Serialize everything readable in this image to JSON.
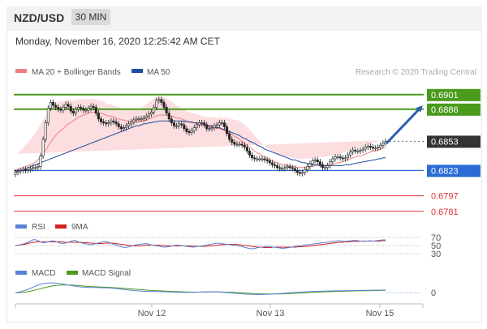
{
  "header": {
    "pair": "NZD/USD",
    "timeframe": "30 MIN"
  },
  "datetime": "Monday, November 16, 2020 12:25:42 AM CET",
  "credit": "Research © 2020 Trading Central",
  "colors": {
    "ma20": "#f08080",
    "ma50": "#1f4e9c",
    "bands": "#fbd3d5",
    "target": "#4a9a1c",
    "support": "#2a6bd6",
    "resistance": "#e23030",
    "arrow": "#2a5fb0",
    "current": "#333333",
    "rsi": "#5b80d8",
    "rsi_ma": "#d42020",
    "macd": "#5b80d8",
    "macd_signal": "#4a9a1c"
  },
  "chart_data": [
    {
      "type": "candlestick",
      "legend": [
        {
          "name": "MA 20 + Bollinger Bands",
          "color": "#f08080"
        },
        {
          "name": "MA 50",
          "color": "#1f4e9c"
        }
      ],
      "xlabel": "",
      "ylabel": "",
      "x_ticks": [
        "Nov 12",
        "Nov 13",
        "Nov 15"
      ],
      "ylim": [
        0.6775,
        0.6915
      ],
      "levels": [
        {
          "value": 0.6901,
          "label": "0.6901",
          "kind": "target"
        },
        {
          "value": 0.6886,
          "label": "0.6886",
          "kind": "target"
        },
        {
          "value": 0.6853,
          "label": "0.6853",
          "kind": "current"
        },
        {
          "value": 0.6823,
          "label": "0.6823",
          "kind": "support"
        },
        {
          "value": 0.6797,
          "label": "0.6797",
          "kind": "resistance"
        },
        {
          "value": 0.6781,
          "label": "0.6781",
          "kind": "resistance"
        }
      ],
      "close": [
        0.6821,
        0.6822,
        0.6823,
        0.6824,
        0.6823,
        0.6824,
        0.6825,
        0.6826,
        0.6826,
        0.6827,
        0.6838,
        0.6855,
        0.6872,
        0.6887,
        0.6893,
        0.689,
        0.6888,
        0.6886,
        0.6885,
        0.6888,
        0.6891,
        0.6889,
        0.6884,
        0.6882,
        0.6886,
        0.6888,
        0.6887,
        0.6885,
        0.6885,
        0.6887,
        0.6889,
        0.6888,
        0.6882,
        0.6876,
        0.6873,
        0.6872,
        0.6871,
        0.6872,
        0.6874,
        0.6873,
        0.6871,
        0.6868,
        0.6866,
        0.6867,
        0.6869,
        0.6871,
        0.6873,
        0.6875,
        0.6876,
        0.6876,
        0.6876,
        0.6877,
        0.6879,
        0.6881,
        0.6883,
        0.6888,
        0.6895,
        0.6896,
        0.6893,
        0.6888,
        0.6882,
        0.6876,
        0.6872,
        0.6869,
        0.6869,
        0.6871,
        0.687,
        0.6866,
        0.6863,
        0.6862,
        0.6864,
        0.6867,
        0.687,
        0.6872,
        0.6872,
        0.687,
        0.6866,
        0.6866,
        0.6867,
        0.6869,
        0.687,
        0.6872,
        0.6872,
        0.6868,
        0.6861,
        0.6855,
        0.6852,
        0.685,
        0.685,
        0.685,
        0.6849,
        0.6847,
        0.6843,
        0.6839,
        0.6836,
        0.6835,
        0.6835,
        0.6835,
        0.6835,
        0.6834,
        0.6833,
        0.6831,
        0.6829,
        0.6828,
        0.6826,
        0.6825,
        0.6825,
        0.6826,
        0.6827,
        0.6826,
        0.6825,
        0.6823,
        0.6821,
        0.682,
        0.6821,
        0.6824,
        0.6827,
        0.683,
        0.6833,
        0.6834,
        0.6832,
        0.6829,
        0.6826,
        0.6826,
        0.6828,
        0.6832,
        0.6835,
        0.6837,
        0.6837,
        0.6836,
        0.6835,
        0.6836,
        0.6839,
        0.6842,
        0.6844,
        0.6843,
        0.6843,
        0.6844,
        0.6845,
        0.6847,
        0.6848,
        0.6847,
        0.6846,
        0.6846,
        0.6847,
        0.6849,
        0.6851,
        0.6853
      ],
      "ma20": [
        0.6824,
        0.6824,
        0.6825,
        0.6826,
        0.6827,
        0.6828,
        0.6829,
        0.683,
        0.6832,
        0.6834,
        0.6837,
        0.6841,
        0.6844,
        0.6848,
        0.6852,
        0.6856,
        0.6859,
        0.6862,
        0.6864,
        0.6866,
        0.6869,
        0.6871,
        0.6872,
        0.6874,
        0.6876,
        0.6878,
        0.6879,
        0.688,
        0.6881,
        0.6882,
        0.6883,
        0.6883,
        0.6883,
        0.6882,
        0.6882,
        0.6881,
        0.688,
        0.6879,
        0.6879,
        0.6878,
        0.6877,
        0.6876,
        0.6875,
        0.6875,
        0.6874,
        0.6874,
        0.6873,
        0.6873,
        0.6873,
        0.6873,
        0.6874,
        0.6874,
        0.6875,
        0.6876,
        0.6877,
        0.6878,
        0.6879,
        0.688,
        0.688,
        0.688,
        0.688,
        0.688,
        0.6879,
        0.6878,
        0.6877,
        0.6877,
        0.6876,
        0.6875,
        0.6874,
        0.6873,
        0.6872,
        0.6872,
        0.6871,
        0.687,
        0.6869,
        0.6869,
        0.6868,
        0.6868,
        0.6867,
        0.6867,
        0.6866,
        0.6866,
        0.6865,
        0.6864,
        0.6863,
        0.6861,
        0.686,
        0.6858,
        0.6857,
        0.6855,
        0.6853,
        0.6851,
        0.6849,
        0.6847,
        0.6845,
        0.6843,
        0.6841,
        0.684,
        0.6838,
        0.6837,
        0.6835,
        0.6834,
        0.6833,
        0.6832,
        0.6831,
        0.683,
        0.6829,
        0.6829,
        0.6828,
        0.6828,
        0.6827,
        0.6827,
        0.6826,
        0.6826,
        0.6826,
        0.6826,
        0.6826,
        0.6827,
        0.6827,
        0.6828,
        0.6828,
        0.6828,
        0.6828,
        0.6828,
        0.6829,
        0.6829,
        0.683,
        0.683,
        0.6831,
        0.6831,
        0.6832,
        0.6833,
        0.6834,
        0.6835,
        0.6836,
        0.6837,
        0.6838,
        0.6838,
        0.6839,
        0.684,
        0.6841,
        0.6842,
        0.6843,
        0.6843,
        0.6844,
        0.6845,
        0.6846,
        0.6847
      ],
      "ma50": [
        0.6822,
        0.6823,
        0.6823,
        0.6824,
        0.6825,
        0.6826,
        0.6827,
        0.6828,
        0.6829,
        0.683,
        0.6831,
        0.6832,
        0.6833,
        0.6834,
        0.6835,
        0.6836,
        0.6837,
        0.6838,
        0.6839,
        0.684,
        0.6841,
        0.6842,
        0.6843,
        0.6844,
        0.6845,
        0.6846,
        0.6847,
        0.6848,
        0.6849,
        0.685,
        0.6851,
        0.6852,
        0.6853,
        0.6854,
        0.6855,
        0.6856,
        0.6857,
        0.6858,
        0.6859,
        0.686,
        0.6861,
        0.6862,
        0.6863,
        0.6864,
        0.6865,
        0.6866,
        0.6867,
        0.6868,
        0.6869,
        0.6869,
        0.687,
        0.6871,
        0.6871,
        0.6872,
        0.6872,
        0.6873,
        0.6873,
        0.6874,
        0.6874,
        0.6874,
        0.6874,
        0.6874,
        0.6874,
        0.6874,
        0.6874,
        0.6874,
        0.6874,
        0.6874,
        0.6873,
        0.6873,
        0.6873,
        0.6872,
        0.6872,
        0.6871,
        0.6871,
        0.687,
        0.687,
        0.6869,
        0.6869,
        0.6868,
        0.6867,
        0.6867,
        0.6866,
        0.6865,
        0.6864,
        0.6863,
        0.6862,
        0.6861,
        0.686,
        0.6859,
        0.6857,
        0.6856,
        0.6855,
        0.6853,
        0.6852,
        0.6851,
        0.6849,
        0.6848,
        0.6847,
        0.6845,
        0.6844,
        0.6843,
        0.6842,
        0.6841,
        0.684,
        0.6839,
        0.6838,
        0.6837,
        0.6836,
        0.6835,
        0.6834,
        0.6834,
        0.6833,
        0.6832,
        0.6831,
        0.6831,
        0.683,
        0.683,
        0.6829,
        0.6829,
        0.6829,
        0.6828,
        0.6828,
        0.6828,
        0.6828,
        0.6828,
        0.6828,
        0.6828,
        0.6828,
        0.6828,
        0.6828,
        0.6829,
        0.6829,
        0.6829,
        0.683,
        0.683,
        0.6831,
        0.6831,
        0.6832,
        0.6832,
        0.6833,
        0.6833,
        0.6834,
        0.6834,
        0.6835,
        0.6835,
        0.6836,
        0.6836
      ],
      "bb_halfwidth": [
        0.0016,
        0.0017,
        0.0018,
        0.002,
        0.0022,
        0.0024,
        0.0026,
        0.0028,
        0.003,
        0.0032,
        0.0033,
        0.0034,
        0.0034,
        0.0035,
        0.0035,
        0.0034,
        0.0033,
        0.0032,
        0.003,
        0.0028,
        0.0026,
        0.0025,
        0.0023,
        0.0021,
        0.0019,
        0.0018,
        0.0017,
        0.0016,
        0.0015,
        0.0014,
        0.0014,
        0.0013,
        0.0013,
        0.0013,
        0.0013,
        0.0013,
        0.0012,
        0.0012,
        0.0012,
        0.0012,
        0.0012,
        0.0012,
        0.0012,
        0.0012,
        0.0012,
        0.0012,
        0.0012,
        0.0012,
        0.0013,
        0.0013,
        0.0014,
        0.0015,
        0.0016,
        0.0017,
        0.0018,
        0.0019,
        0.0019,
        0.0019,
        0.0019,
        0.0018,
        0.0017,
        0.0016,
        0.0015,
        0.0014,
        0.0013,
        0.0012,
        0.0011,
        0.0011,
        0.001,
        0.001,
        0.001,
        0.001,
        0.001,
        0.001,
        0.001,
        0.001,
        0.001,
        0.001,
        0.001,
        0.0011,
        0.0011,
        0.0012,
        0.0012,
        0.0013,
        0.0014,
        0.0015,
        0.0016,
        0.0017,
        0.0018,
        0.0019,
        0.0019,
        0.0019,
        0.0019,
        0.0018,
        0.0017,
        0.0016,
        0.0015,
        0.0014,
        0.0013,
        0.0012,
        0.0011,
        0.001,
        0.001,
        0.0009,
        0.0009,
        0.0009,
        0.0009,
        0.0009,
        0.0009,
        0.0009,
        0.0009,
        0.0009,
        0.0009,
        0.0009,
        0.0009,
        0.0009,
        0.0009,
        0.0009,
        0.0009,
        0.0009,
        0.0009,
        0.0009,
        0.0009,
        0.0009,
        0.0009,
        0.0009,
        0.0009,
        0.0009,
        0.0009,
        0.0009,
        0.0009,
        0.0009,
        0.0009,
        0.0009,
        0.0009,
        0.0009,
        0.0009,
        0.0009,
        0.0009,
        0.0009,
        0.0009,
        0.0009,
        0.0009,
        0.0009,
        0.0009,
        0.0009
      ]
    },
    {
      "type": "line",
      "legend": [
        {
          "name": "RSI",
          "color": "#5b80d8"
        },
        {
          "name": "9MA",
          "color": "#d42020"
        }
      ],
      "ylim": [
        20,
        80
      ],
      "levels": [
        {
          "value": 70,
          "label": "70"
        },
        {
          "value": 50,
          "label": "50"
        },
        {
          "value": 30,
          "label": "30"
        }
      ],
      "rsi": [
        49,
        51,
        53,
        55,
        58,
        62,
        65,
        63,
        59,
        57,
        58,
        60,
        62,
        60,
        57,
        55,
        56,
        58,
        61,
        63,
        60,
        57,
        55,
        54,
        52,
        53,
        55,
        57,
        59,
        60,
        58,
        55,
        52,
        49,
        47,
        45,
        46,
        48,
        50,
        52,
        53,
        54,
        55,
        53,
        51,
        50,
        49,
        47,
        46,
        47,
        48,
        50,
        51,
        50,
        49,
        48,
        47,
        46,
        47,
        48,
        49,
        50,
        52,
        53,
        55,
        56,
        55,
        54,
        53,
        52,
        51,
        50,
        49,
        47,
        45,
        43,
        42,
        43,
        45,
        46,
        47,
        48,
        47,
        46,
        45,
        44,
        43,
        44,
        45,
        46,
        48,
        49,
        50,
        51,
        52,
        53,
        54,
        55,
        56,
        57,
        58,
        59,
        60,
        61,
        62,
        61,
        60,
        61,
        62,
        63,
        62,
        61,
        60,
        61,
        62,
        61,
        62,
        63,
        64,
        64
      ],
      "ma9": [
        50,
        51,
        52,
        53,
        55,
        57,
        58,
        59,
        59,
        59,
        59,
        59,
        59,
        59,
        59,
        59,
        58,
        58,
        58,
        58,
        58,
        58,
        57,
        57,
        56,
        56,
        55,
        55,
        55,
        56,
        56,
        56,
        55,
        54,
        53,
        52,
        51,
        50,
        49,
        49,
        49,
        50,
        51,
        51,
        51,
        51,
        51,
        50,
        50,
        49,
        49,
        49,
        49,
        49,
        49,
        49,
        49,
        48,
        48,
        48,
        48,
        48,
        49,
        49,
        50,
        51,
        52,
        52,
        53,
        53,
        53,
        53,
        52,
        51,
        50,
        49,
        48,
        47,
        46,
        46,
        45,
        45,
        45,
        46,
        46,
        46,
        46,
        46,
        46,
        46,
        46,
        47,
        47,
        48,
        48,
        49,
        50,
        51,
        52,
        53,
        54,
        55,
        56,
        57,
        58,
        58,
        59,
        59,
        60,
        60,
        60,
        61,
        61,
        61,
        61,
        61,
        61,
        61,
        62,
        62
      ]
    },
    {
      "type": "line",
      "legend": [
        {
          "name": "MACD",
          "color": "#5b80d8"
        },
        {
          "name": "MACD Signal",
          "color": "#4a9a1c"
        }
      ],
      "ylim": [
        -0.0012,
        0.0018
      ],
      "levels": [
        {
          "value": 0,
          "label": "0"
        }
      ],
      "macd": [
        0.0,
        0.0001,
        0.00025,
        0.00045,
        0.0007,
        0.00095,
        0.00115,
        0.00128,
        0.00135,
        0.00135,
        0.0013,
        0.00122,
        0.00112,
        0.00102,
        0.00092,
        0.00084,
        0.00078,
        0.00074,
        0.00072,
        0.00071,
        0.0007,
        0.00068,
        0.00066,
        0.00063,
        0.00058,
        0.00052,
        0.00045,
        0.00038,
        0.00032,
        0.00027,
        0.00023,
        0.0002,
        0.00018,
        0.00017,
        0.00016,
        0.00014,
        0.00012,
        0.0001,
        8e-05,
        6e-05,
        4e-05,
        3e-05,
        4e-05,
        6e-05,
        8e-05,
        0.0001,
        0.00012,
        0.00013,
        0.00012,
        0.0001,
        6e-05,
        1e-05,
        -4e-05,
        -9e-05,
        -0.00014,
        -0.00018,
        -0.00021,
        -0.00023,
        -0.00024,
        -0.00024,
        -0.00023,
        -0.00021,
        -0.00018,
        -0.00014,
        -0.0001,
        -6e-05,
        -2e-05,
        2e-05,
        6e-05,
        0.0001,
        0.00013,
        0.00016,
        0.00018,
        0.0002,
        0.00022,
        0.00023,
        0.00024,
        0.00025,
        0.00026,
        0.00027,
        0.00028,
        0.00029,
        0.0003,
        0.00031,
        0.00032,
        0.00033,
        0.00034,
        0.00035,
        0.00036,
        0.00037
      ],
      "signal": [
        0.0,
        2e-05,
        6e-05,
        0.00014,
        0.00025,
        0.00039,
        0.00054,
        0.00069,
        0.00082,
        0.00093,
        0.00101,
        0.00105,
        0.00107,
        0.00106,
        0.00103,
        0.00099,
        0.00094,
        0.00089,
        0.00085,
        0.00082,
        0.00079,
        0.00077,
        0.00074,
        0.00071,
        0.00068,
        0.00065,
        0.00061,
        0.00056,
        0.00052,
        0.00047,
        0.00042,
        0.00038,
        0.00034,
        0.0003,
        0.00027,
        0.00025,
        0.00022,
        0.0002,
        0.00017,
        0.00015,
        0.00012,
        0.0001,
        9e-05,
        8e-05,
        8e-05,
        9e-05,
        9e-05,
        0.0001,
        0.0001,
        0.0001,
        9e-05,
        7e-05,
        5e-05,
        2e-05,
        -2e-05,
        -5e-05,
        -8e-05,
        -0.00011,
        -0.00014,
        -0.00016,
        -0.00017,
        -0.00018,
        -0.00018,
        -0.00017,
        -0.00016,
        -0.00014,
        -0.00012,
        -9e-05,
        -6e-05,
        -3e-05,
        0.0,
        3e-05,
        6e-05,
        8e-05,
        0.00011,
        0.00013,
        0.00015,
        0.00017,
        0.00019,
        0.0002,
        0.00022,
        0.00023,
        0.00025,
        0.00026,
        0.00027,
        0.00028,
        0.00029,
        0.0003,
        0.00031,
        0.00032
      ]
    }
  ]
}
